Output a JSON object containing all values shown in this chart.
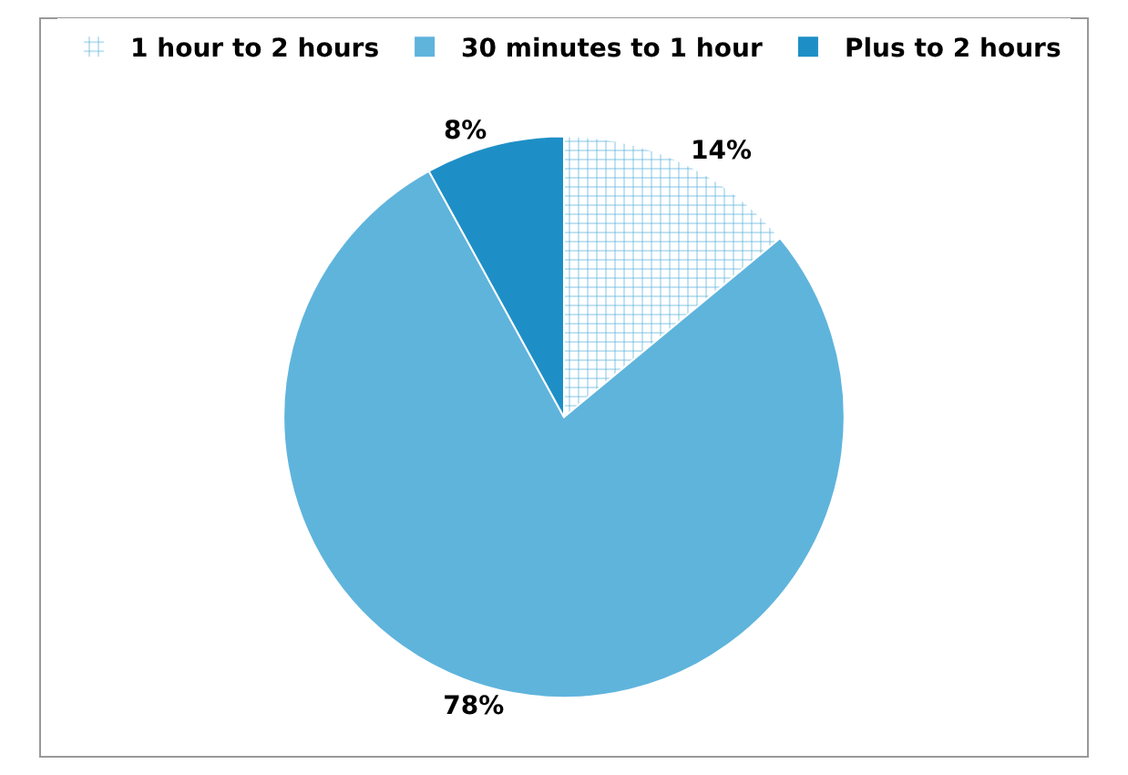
{
  "chart_data": {
    "type": "pie",
    "categories": [
      "1 hour to 2 hours",
      "30 minutes to 1 hour",
      "Plus to 2 hours"
    ],
    "values": [
      14,
      78,
      8
    ],
    "value_labels": [
      "14%",
      "78%",
      "8%"
    ],
    "colors": [
      "#ffffff",
      "#5fb4dc",
      "#1e8fc6"
    ],
    "legend": "top"
  }
}
